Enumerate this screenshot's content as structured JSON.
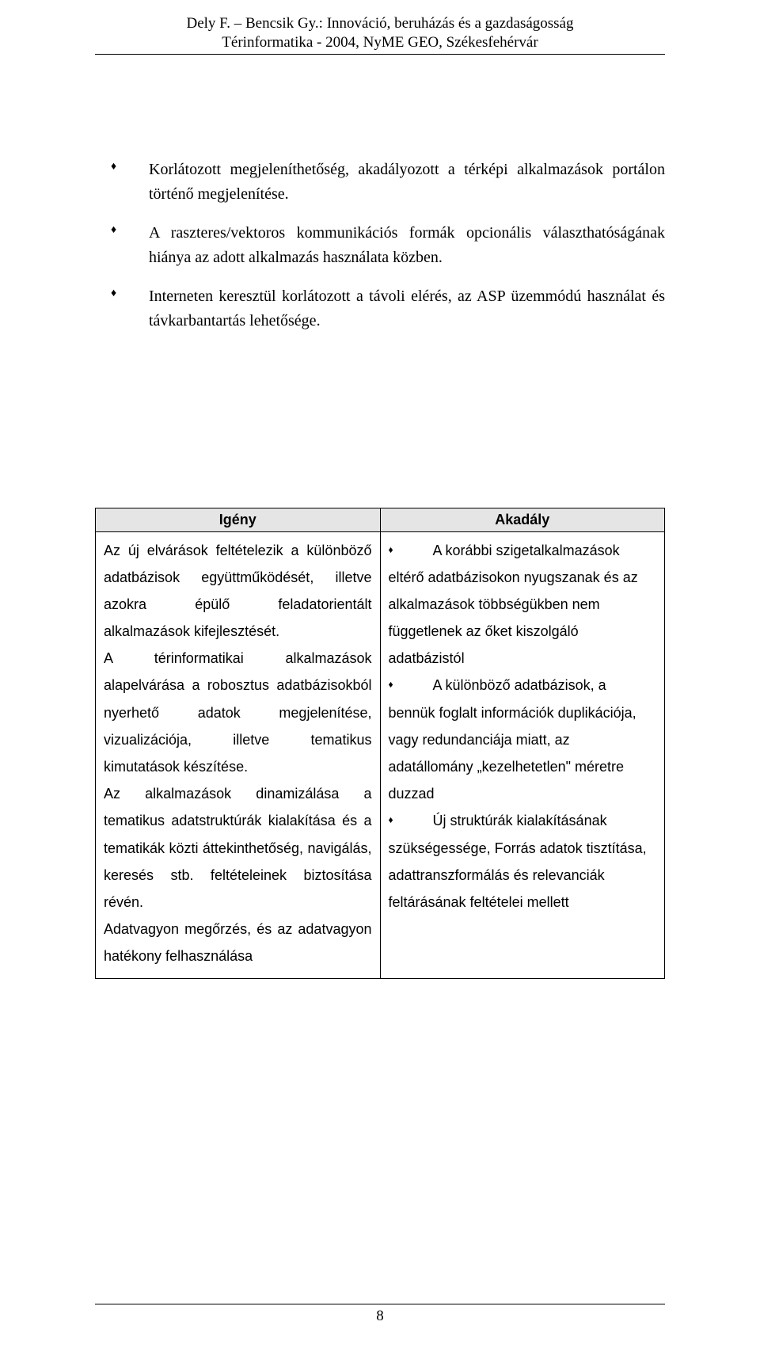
{
  "header": {
    "line1": "Dely F. – Bencsik Gy.: Innováció, beruházás és a gazdaságosság",
    "line2": "Térinformatika - 2004, NyME GEO, Székesfehérvár"
  },
  "bullets": {
    "marker": "♦",
    "items": [
      "Korlátozott megjeleníthetőség, akadályozott a térképi alkalmazások portálon történő megjelenítése.",
      "A raszteres/vektoros kommunikációs formák opcionális választhatóságának hiánya az adott alkalmazás használata közben.",
      "Interneten keresztül korlátozott a távoli elérés, az ASP üzemmódú használat és távkarbantartás lehetősége."
    ]
  },
  "table": {
    "headers": {
      "left": "Igény",
      "right": "Akadály"
    },
    "left_cell": "Az új elvárások feltételezik a különböző adatbázisok együttműködését, illetve azokra épülő feladatorientált alkalmazások kifejlesztését.\nA térinformatikai alkalmazások alapelvárása a robosztus adatbázisokból nyerhető adatok megjelenítése, vizualizációja, illetve tematikus kimutatások készítése.\nAz alkalmazások dinamizálása a tematikus adatstruktúrák kialakítása és a tematikák közti áttekinthetőség, navigálás, keresés stb. feltételeinek biztosítása révén.\nAdatvagyon megőrzés, és az adatvagyon hatékony felhasználása",
    "right_items": [
      {
        "first": "A korábbi szigetalkalmazások",
        "rest": "eltérő adatbázisokon nyugszanak és az alkalmazások többségükben nem függetlenek az őket kiszolgáló adatbázistól"
      },
      {
        "first": "A különböző adatbázisok, a",
        "rest": "bennük foglalt információk duplikációja, vagy redundanciája miatt, az adatállomány „kezelhetetlen\" méretre duzzad"
      },
      {
        "first": "Új struktúrák kialakításának",
        "rest": "szükségessége, Forrás adatok tisztítása, adattranszformálás és relevanciák feltárásának feltételei mellett"
      }
    ],
    "bullet_marker": "♦"
  },
  "footer": {
    "page_number": "8"
  }
}
